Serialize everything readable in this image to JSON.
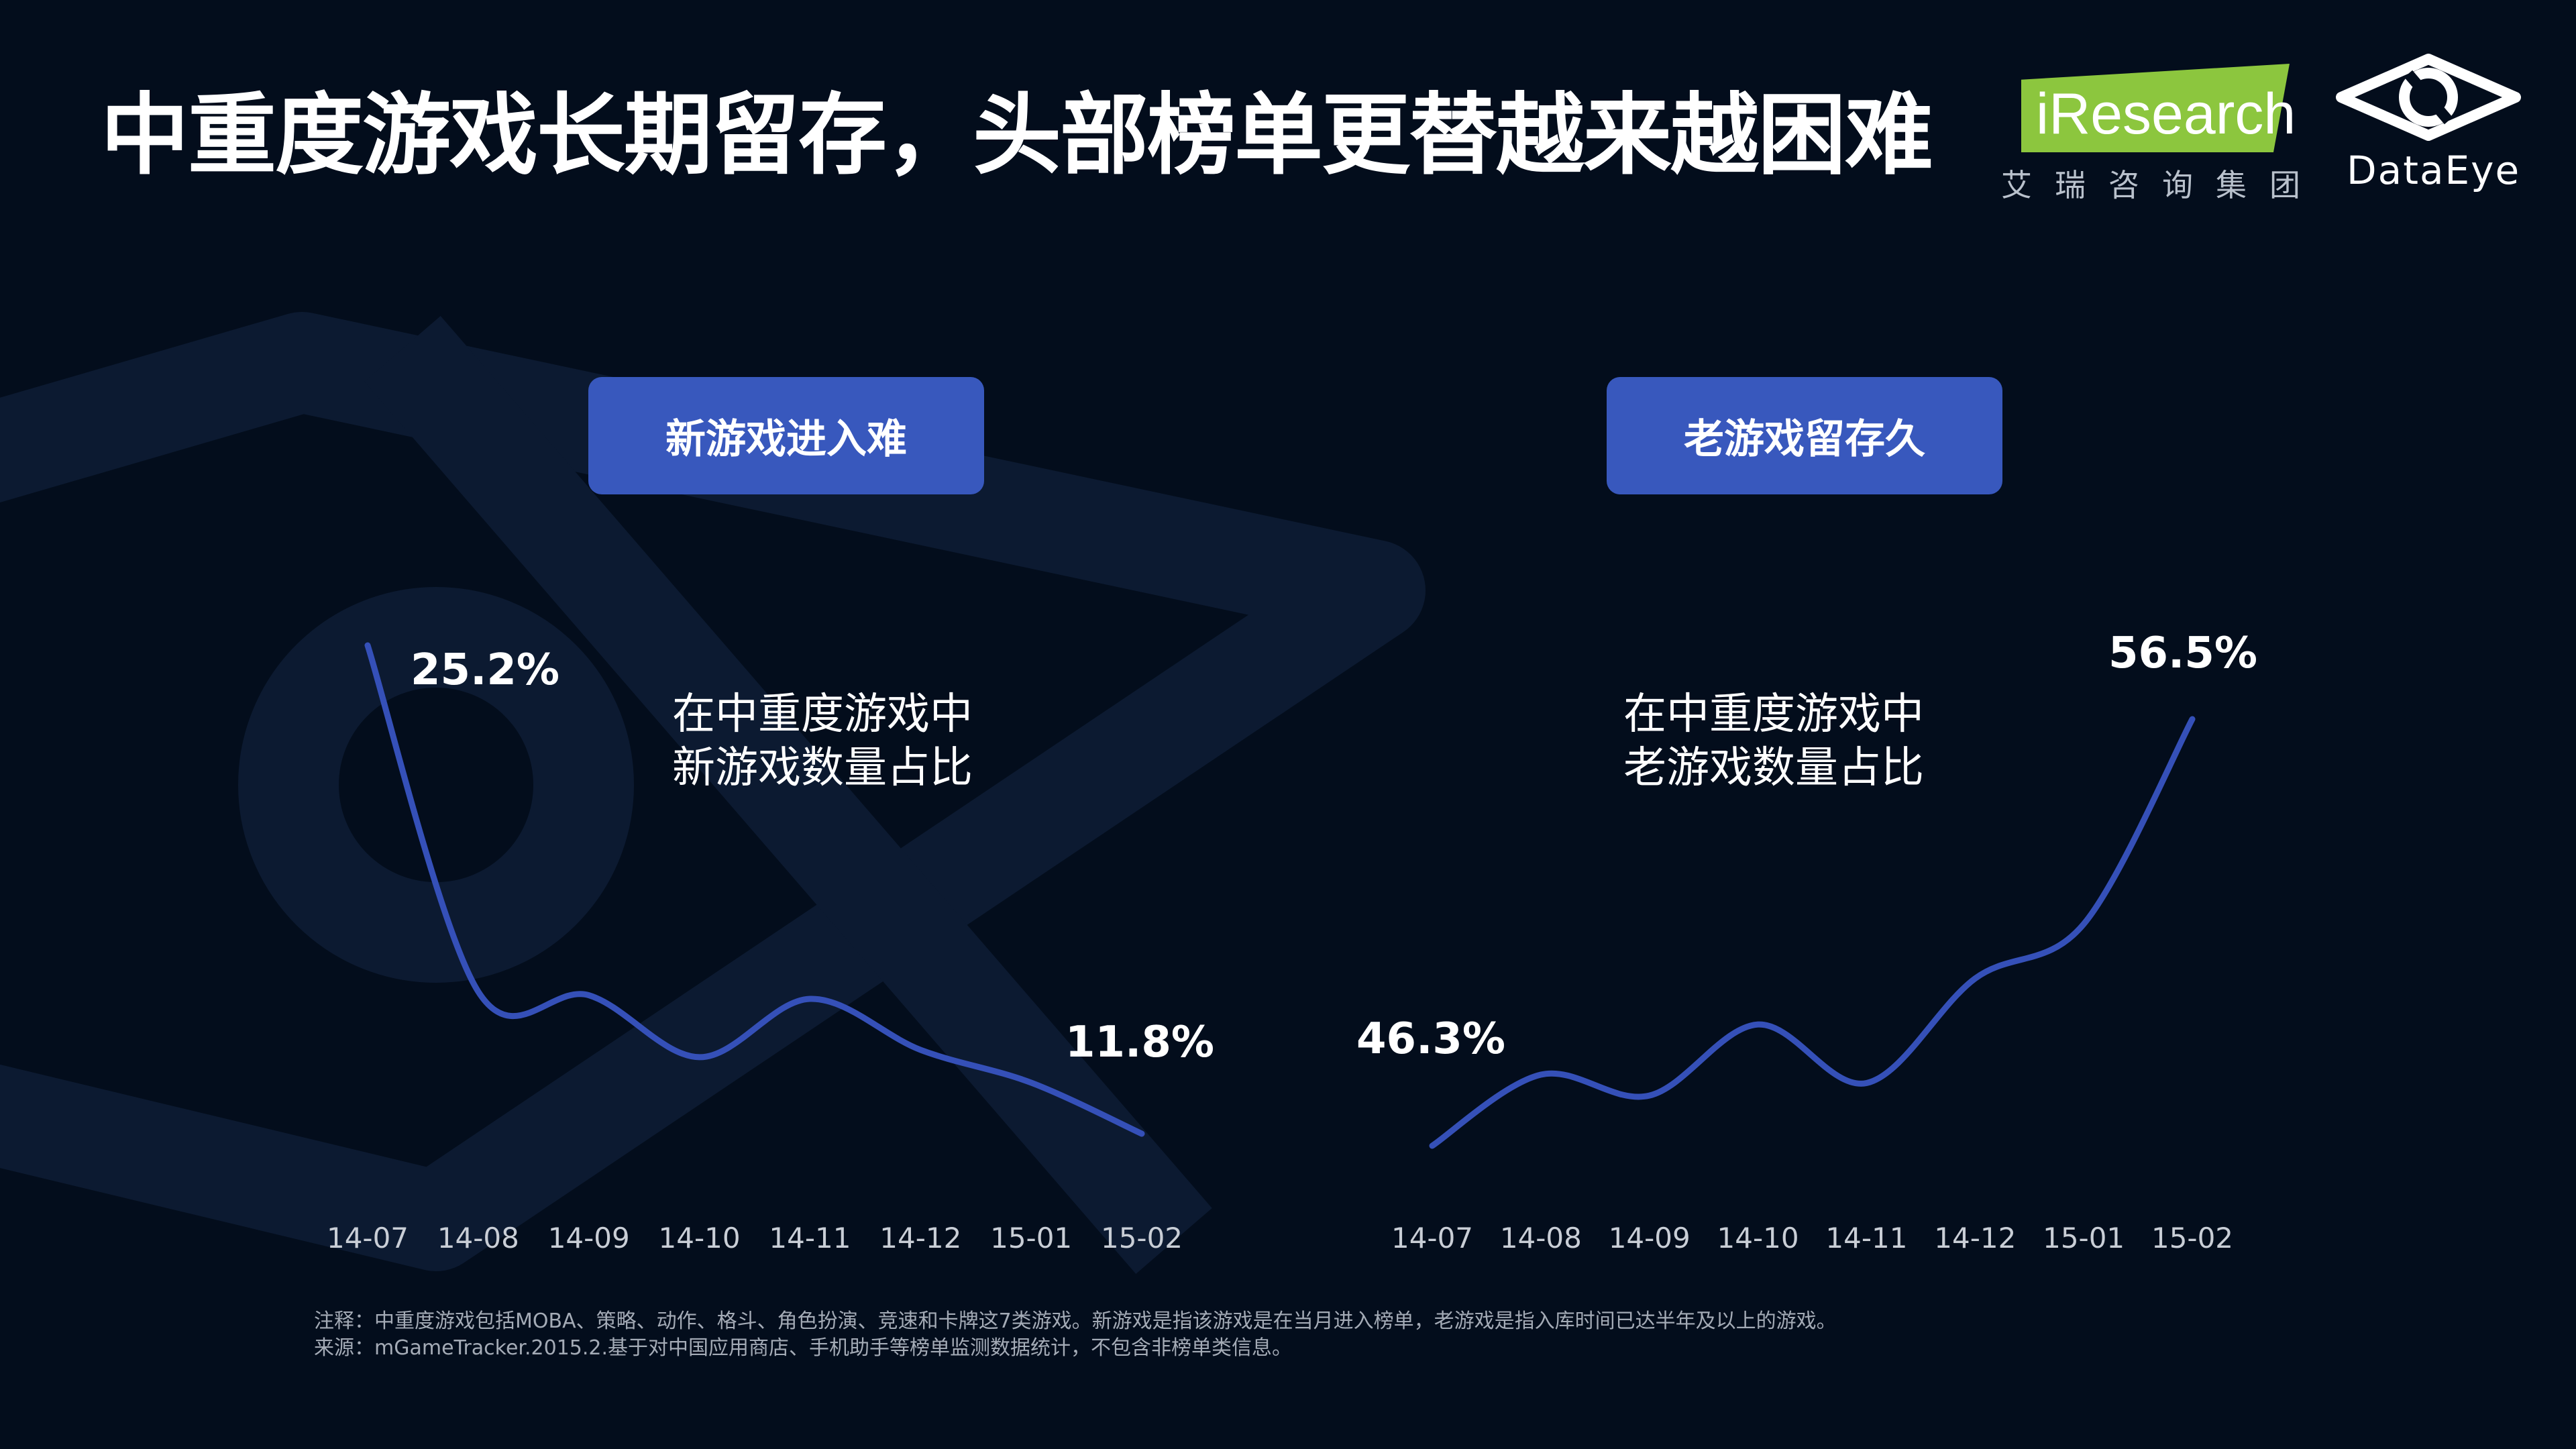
{
  "title": "中重度游戏长期留存，头部榜单更替越来越困难",
  "logos": {
    "iresearch_name": "iResearch",
    "iresearch_sub": "艾瑞咨询集团",
    "dataeye_name": "DataEye",
    "colors": {
      "iresearch_green": "#8cc63e",
      "iresearch_blue": "#2f6fe0"
    }
  },
  "panels": {
    "left": {
      "tag": "新游戏进入难",
      "desc_line1": "在中重度游戏中",
      "desc_line2": "新游戏数量占比"
    },
    "right": {
      "tag": "老游戏留存久",
      "desc_line1": "在中重度游戏中",
      "desc_line2": "老游戏数量占比"
    }
  },
  "chart_data": [
    {
      "type": "line",
      "x": [
        "14-07",
        "14-08",
        "14-09",
        "14-10",
        "14-11",
        "14-12",
        "15-01",
        "15-02"
      ],
      "series": [
        {
          "values": [
            25.2,
            15.7,
            15.6,
            13.9,
            15.5,
            14.1,
            13.2,
            11.8
          ]
        }
      ],
      "labels": {
        "first": "25.2%",
        "last": "11.8%"
      },
      "unit": "%",
      "color": "#3550b8",
      "grid": false
    },
    {
      "type": "line",
      "x": [
        "14-07",
        "14-08",
        "14-09",
        "14-10",
        "14-11",
        "14-12",
        "15-01",
        "15-02"
      ],
      "series": [
        {
          "values": [
            46.3,
            48.0,
            47.5,
            49.2,
            47.8,
            50.3,
            51.6,
            56.5
          ]
        }
      ],
      "labels": {
        "first": "46.3%",
        "last": "56.5%"
      },
      "unit": "%",
      "color": "#3550b8",
      "grid": false
    }
  ],
  "footnote": {
    "line1": "注释：中重度游戏包括MOBA、策略、动作、格斗、角色扮演、竞速和卡牌这7类游戏。新游戏是指该游戏是在当月进入榜单，老游戏是指入库时间已达半年及以上的游戏。",
    "line2": "来源：mGameTracker.2015.2.基于对中国应用商店、手机助手等榜单监测数据统计，不包含非榜单类信息。"
  }
}
